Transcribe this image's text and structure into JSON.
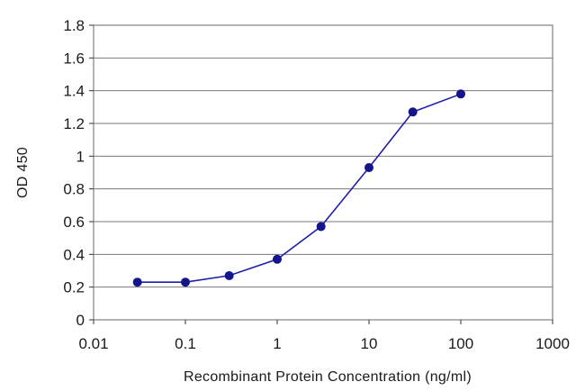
{
  "chart_data": {
    "type": "line",
    "title": "",
    "xlabel": "Recombinant Protein Concentration (ng/ml)",
    "ylabel": "OD 450",
    "xscale": "log",
    "xlim": [
      0.01,
      1000
    ],
    "ylim": [
      0,
      1.8
    ],
    "grid": "horizontal",
    "legend": "none",
    "x_tick_labels": [
      "0.01",
      "0.1",
      "1",
      "10",
      "100",
      "1000"
    ],
    "x_tick_values": [
      0.01,
      0.1,
      1,
      10,
      100,
      1000
    ],
    "y_tick_labels": [
      "0",
      "0.2",
      "0.4",
      "0.6",
      "0.8",
      "1",
      "1.2",
      "1.4",
      "1.6",
      "1.8"
    ],
    "y_tick_values": [
      0,
      0.2,
      0.4,
      0.6,
      0.8,
      1,
      1.2,
      1.4,
      1.6,
      1.8
    ],
    "series": [
      {
        "x": [
          0.03,
          0.1,
          0.3,
          1,
          3,
          10,
          30,
          100
        ],
        "y": [
          0.23,
          0.23,
          0.27,
          0.37,
          0.57,
          0.93,
          1.27,
          1.38
        ],
        "color": "#1f1fa8"
      }
    ]
  }
}
